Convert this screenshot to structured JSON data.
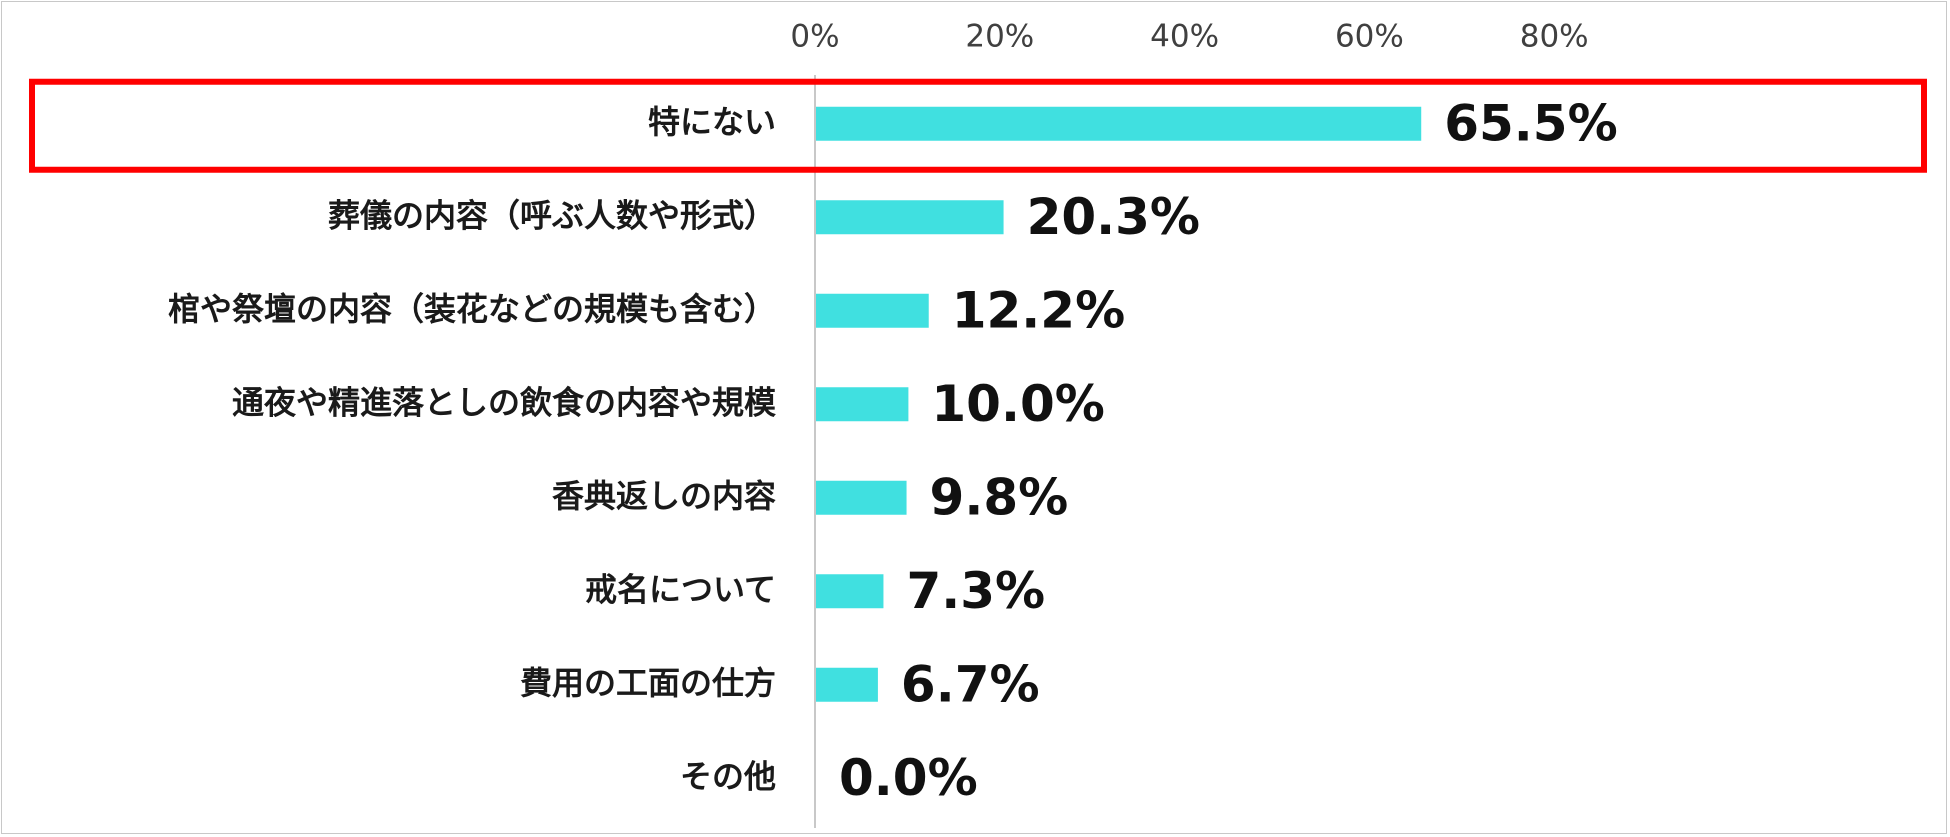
{
  "chart_data": {
    "type": "bar",
    "orientation": "horizontal",
    "title": "",
    "xlabel": "",
    "ylabel": "",
    "xlim": [
      0,
      90
    ],
    "x_ticks": [
      0,
      20,
      40,
      60,
      80
    ],
    "x_tick_labels": [
      "0%",
      "20%",
      "40%",
      "60%",
      "80%"
    ],
    "categories": [
      "特にない",
      "葬儀の内容（呼ぶ人数や形式）",
      "棺や祭壇の内容（装花などの規模も含む）",
      "通夜や精進落としの飲食の内容や規模",
      "香典返しの内容",
      "戒名について",
      "費用の工面の仕方",
      "その他"
    ],
    "values": [
      65.5,
      20.3,
      12.2,
      10.0,
      9.8,
      7.3,
      6.7,
      0.0
    ],
    "value_labels": [
      "65.5%",
      "20.3%",
      "12.2%",
      "10.0%",
      "9.8%",
      "7.3%",
      "6.7%",
      "0.0%"
    ],
    "highlighted_category": "特にない",
    "grid": false,
    "legend": "none",
    "colors": {
      "bar": "#40E0E0",
      "highlight_box": "#FF0000",
      "axis": "#c8c8c8"
    }
  }
}
